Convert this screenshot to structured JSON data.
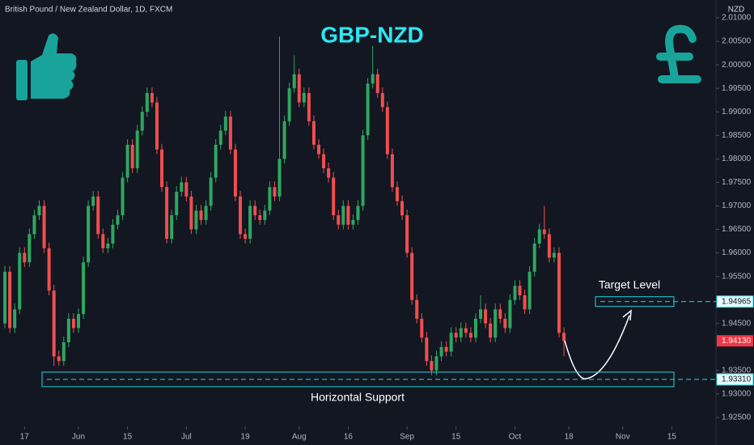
{
  "chart_data": {
    "type": "candlestick",
    "header": "British Pound / New Zealand Dollar, 1D, FXCM",
    "title": "GBP-NZD",
    "currency": "NZD",
    "up_color": "#2ea760",
    "down_color": "#ef4f4f",
    "x": [
      0,
      1,
      2,
      3,
      4,
      5,
      6,
      7,
      8,
      9,
      10,
      11,
      12,
      13,
      14,
      15,
      16,
      17,
      18,
      19,
      20,
      21,
      22,
      23,
      24,
      25,
      26,
      27,
      28,
      29,
      30,
      31,
      32,
      33,
      34,
      35,
      36,
      37,
      38,
      39,
      40,
      41,
      42,
      43,
      44,
      45,
      46,
      47,
      48,
      49,
      50,
      51,
      52,
      53,
      54,
      55,
      56,
      57,
      58,
      59,
      60,
      61,
      62,
      63,
      64,
      65,
      66,
      67,
      68,
      69,
      70,
      71,
      72,
      73,
      74,
      75,
      76,
      77,
      78,
      79,
      80,
      81,
      82,
      83,
      84,
      85,
      86,
      87,
      88,
      89,
      90,
      91,
      92,
      93,
      94,
      95,
      96,
      97,
      98,
      99,
      100,
      101,
      102,
      103,
      104,
      105,
      106,
      107,
      108,
      109,
      110,
      111,
      112,
      113,
      114
    ],
    "open": [
      1.945,
      1.956,
      1.944,
      1.948,
      1.96,
      1.958,
      1.964,
      1.968,
      1.97,
      1.961,
      1.952,
      1.938,
      1.937,
      1.941,
      1.946,
      1.944,
      1.947,
      1.958,
      1.97,
      1.972,
      1.964,
      1.961,
      1.962,
      1.966,
      1.968,
      1.976,
      1.983,
      1.978,
      1.986,
      1.99,
      1.994,
      1.992,
      1.982,
      1.974,
      1.963,
      1.968,
      1.973,
      1.975,
      1.972,
      1.965,
      1.969,
      1.967,
      1.97,
      1.976,
      1.983,
      1.986,
      1.989,
      1.982,
      1.972,
      1.964,
      1.963,
      1.97,
      1.968,
      1.967,
      1.969,
      1.974,
      1.972,
      1.98,
      1.988,
      1.995,
      1.998,
      1.992,
      1.994,
      1.988,
      1.983,
      1.981,
      1.978,
      1.976,
      1.968,
      1.966,
      1.97,
      1.966,
      1.967,
      1.97,
      1.985,
      1.996,
      1.998,
      1.994,
      1.991,
      1.981,
      1.974,
      1.971,
      1.968,
      1.96,
      1.95,
      1.946,
      1.942,
      1.937,
      1.935,
      1.938,
      1.94,
      1.939,
      1.943,
      1.942,
      1.944,
      1.943,
      1.942,
      1.946,
      1.948,
      1.945,
      1.942,
      1.948,
      1.946,
      1.944,
      1.95,
      1.953,
      1.951,
      1.948,
      1.956,
      1.962,
      1.965,
      1.964,
      1.959,
      1.96,
      1.943
    ],
    "high": [
      1.9572,
      1.9572,
      1.9492,
      1.9612,
      1.9612,
      1.9652,
      1.9692,
      1.9712,
      1.9712,
      1.9622,
      1.9532,
      1.9392,
      1.9422,
      1.9472,
      1.9472,
      1.9482,
      1.9592,
      1.9712,
      1.9732,
      1.9732,
      1.9652,
      1.9632,
      1.9672,
      1.9692,
      1.9772,
      1.9842,
      1.9842,
      1.9872,
      1.9912,
      1.9952,
      1.9952,
      1.9932,
      1.9832,
      1.9752,
      1.9692,
      1.9742,
      1.9762,
      1.9762,
      1.9732,
      1.9702,
      1.9702,
      1.9712,
      1.9772,
      1.9842,
      1.9872,
      1.9902,
      1.9902,
      1.9832,
      1.9732,
      1.9652,
      1.9712,
      1.9712,
      1.9692,
      1.9702,
      1.9752,
      1.9752,
      2.006,
      1.9892,
      1.9962,
      2.002,
      1.9992,
      1.9952,
      1.9952,
      1.9892,
      1.9842,
      1.9822,
      1.9792,
      1.9772,
      1.9692,
      1.9712,
      1.9712,
      1.9682,
      1.9712,
      1.9862,
      1.9972,
      2.004,
      1.9992,
      1.9952,
      1.9922,
      1.9822,
      1.9752,
      1.9722,
      1.9692,
      1.9612,
      1.9512,
      1.9472,
      1.9432,
      1.9382,
      1.9392,
      1.9412,
      1.9412,
      1.9442,
      1.9442,
      1.9452,
      1.9452,
      1.9442,
      1.9472,
      1.951,
      1.9492,
      1.9462,
      1.9492,
      1.9492,
      1.9472,
      1.9512,
      1.9542,
      1.9542,
      1.9522,
      1.9572,
      1.9632,
      1.9662,
      1.97,
      1.9652,
      1.9612,
      1.9612,
      1.9442
    ],
    "low": [
      1.944,
      1.943,
      1.943,
      1.947,
      1.957,
      1.957,
      1.963,
      1.967,
      1.96,
      1.951,
      1.936,
      1.936,
      1.936,
      1.94,
      1.943,
      1.943,
      1.946,
      1.957,
      1.969,
      1.963,
      1.96,
      1.96,
      1.961,
      1.965,
      1.967,
      1.975,
      1.977,
      1.977,
      1.985,
      1.989,
      1.991,
      1.981,
      1.973,
      1.962,
      1.962,
      1.967,
      1.972,
      1.971,
      1.964,
      1.964,
      1.966,
      1.966,
      1.969,
      1.975,
      1.982,
      1.985,
      1.981,
      1.971,
      1.963,
      1.962,
      1.962,
      1.967,
      1.966,
      1.966,
      1.968,
      1.971,
      1.971,
      1.979,
      1.987,
      1.994,
      1.991,
      1.991,
      1.987,
      1.982,
      1.98,
      1.977,
      1.975,
      1.967,
      1.965,
      1.965,
      1.965,
      1.965,
      1.966,
      1.969,
      1.984,
      1.995,
      1.993,
      1.99,
      1.98,
      1.973,
      1.97,
      1.967,
      1.959,
      1.949,
      1.945,
      1.941,
      1.936,
      1.934,
      1.934,
      1.937,
      1.938,
      1.938,
      1.941,
      1.941,
      1.942,
      1.941,
      1.941,
      1.945,
      1.944,
      1.941,
      1.941,
      1.945,
      1.943,
      1.943,
      1.949,
      1.95,
      1.947,
      1.947,
      1.955,
      1.961,
      1.963,
      1.958,
      1.958,
      1.942,
      1.938
    ],
    "close": [
      1.956,
      1.944,
      1.948,
      1.96,
      1.958,
      1.964,
      1.968,
      1.97,
      1.961,
      1.952,
      1.938,
      1.937,
      1.941,
      1.946,
      1.944,
      1.947,
      1.958,
      1.97,
      1.972,
      1.964,
      1.961,
      1.962,
      1.966,
      1.968,
      1.976,
      1.983,
      1.978,
      1.986,
      1.99,
      1.994,
      1.992,
      1.982,
      1.974,
      1.963,
      1.968,
      1.973,
      1.975,
      1.972,
      1.965,
      1.969,
      1.967,
      1.97,
      1.976,
      1.983,
      1.986,
      1.989,
      1.982,
      1.972,
      1.964,
      1.963,
      1.97,
      1.968,
      1.967,
      1.969,
      1.974,
      1.972,
      1.98,
      1.988,
      1.995,
      1.998,
      1.992,
      1.994,
      1.988,
      1.983,
      1.981,
      1.978,
      1.976,
      1.968,
      1.966,
      1.97,
      1.966,
      1.967,
      1.97,
      1.985,
      1.996,
      1.998,
      1.994,
      1.991,
      1.981,
      1.974,
      1.971,
      1.968,
      1.96,
      1.95,
      1.946,
      1.942,
      1.937,
      1.935,
      1.938,
      1.94,
      1.939,
      1.943,
      1.942,
      1.944,
      1.943,
      1.942,
      1.946,
      1.948,
      1.945,
      1.942,
      1.948,
      1.946,
      1.944,
      1.95,
      1.953,
      1.951,
      1.948,
      1.956,
      1.962,
      1.965,
      1.964,
      1.959,
      1.96,
      1.943,
      1.9413
    ],
    "xlim": [
      -1,
      145
    ],
    "xticks": [
      {
        "value": 4,
        "label": "17"
      },
      {
        "value": 15,
        "label": "Jun"
      },
      {
        "value": 25,
        "label": "15"
      },
      {
        "value": 37,
        "label": "Jul"
      },
      {
        "value": 49,
        "label": "19"
      },
      {
        "value": 60,
        "label": "Aug"
      },
      {
        "value": 70,
        "label": "16"
      },
      {
        "value": 82,
        "label": "Sep"
      },
      {
        "value": 92,
        "label": "15"
      },
      {
        "value": 104,
        "label": "Oct"
      },
      {
        "value": 115,
        "label": "18"
      },
      {
        "value": 126,
        "label": "Nov"
      },
      {
        "value": 136,
        "label": "15"
      }
    ],
    "ylim": [
      1.925,
      2.01
    ],
    "yticks": [
      {
        "value": 2.01,
        "label": "2.01000"
      },
      {
        "value": 2.005,
        "label": "2.00500"
      },
      {
        "value": 2.0,
        "label": "2.00000"
      },
      {
        "value": 1.995,
        "label": "1.99500"
      },
      {
        "value": 1.99,
        "label": "1.99000"
      },
      {
        "value": 1.985,
        "label": "1.98500"
      },
      {
        "value": 1.98,
        "label": "1.98000"
      },
      {
        "value": 1.975,
        "label": "1.97500"
      },
      {
        "value": 1.97,
        "label": "1.97000"
      },
      {
        "value": 1.965,
        "label": "1.96500"
      },
      {
        "value": 1.96,
        "label": "1.96000"
      },
      {
        "value": 1.955,
        "label": "1.95500"
      },
      {
        "value": 1.945,
        "label": "1.94500"
      },
      {
        "value": 1.935,
        "label": "1.93500"
      },
      {
        "value": 1.93,
        "label": "1.93000"
      },
      {
        "value": 1.925,
        "label": "1.92500"
      }
    ],
    "target_level": {
      "text": "Target Level",
      "value": 1.94965,
      "label": "1.94965"
    },
    "support_level": {
      "text": "Horizontal Support",
      "value": 1.9331,
      "label": "1.93310"
    },
    "last_price": {
      "value": 1.9413,
      "label": "1.94130"
    }
  }
}
